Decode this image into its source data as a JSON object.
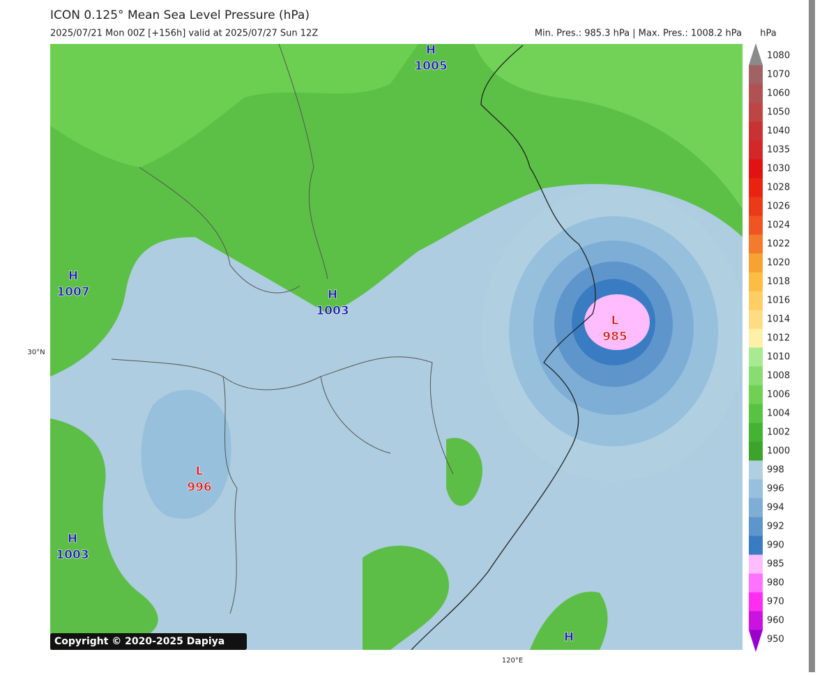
{
  "header": {
    "title": "ICON 0.125° Mean Sea Level Pressure (hPa)",
    "subtitle": "2025/07/21 Mon 00Z [+156h] valid at 2025/07/27 Sun 12Z",
    "min_max": "Min. Pres.: 985.3 hPa | Max. Pres.: 1008.2 hPa"
  },
  "colorbar": {
    "unit": "hPa",
    "entries": [
      {
        "value": 1080,
        "color": "#8a8a8a"
      },
      {
        "value": 1070,
        "color": "#a06262"
      },
      {
        "value": 1060,
        "color": "#b05252"
      },
      {
        "value": 1050,
        "color": "#bf4444"
      },
      {
        "value": 1040,
        "color": "#c83232"
      },
      {
        "value": 1035,
        "color": "#d22828"
      },
      {
        "value": 1030,
        "color": "#e01212"
      },
      {
        "value": 1028,
        "color": "#e82410"
      },
      {
        "value": 1026,
        "color": "#ea3a18"
      },
      {
        "value": 1024,
        "color": "#f05422"
      },
      {
        "value": 1022,
        "color": "#f47a2c"
      },
      {
        "value": 1020,
        "color": "#f8a234"
      },
      {
        "value": 1018,
        "color": "#fbbd44"
      },
      {
        "value": 1016,
        "color": "#fcce64"
      },
      {
        "value": 1014,
        "color": "#fddc84"
      },
      {
        "value": 1012,
        "color": "#fef0a6"
      },
      {
        "value": 1010,
        "color": "#a8ea92"
      },
      {
        "value": 1008,
        "color": "#88dc72"
      },
      {
        "value": 1006,
        "color": "#70d054"
      },
      {
        "value": 1004,
        "color": "#5ac242"
      },
      {
        "value": 1002,
        "color": "#44b232"
      },
      {
        "value": 1000,
        "color": "#3ea32c"
      },
      {
        "value": 998,
        "color": "#b0d0e2"
      },
      {
        "value": 996,
        "color": "#96c0dc"
      },
      {
        "value": 994,
        "color": "#7eaed6"
      },
      {
        "value": 992,
        "color": "#5e96cc"
      },
      {
        "value": 990,
        "color": "#3a7cc2"
      },
      {
        "value": 985,
        "color": "#ffbcff"
      },
      {
        "value": 980,
        "color": "#ff72ff"
      },
      {
        "value": 970,
        "color": "#ff2cf2"
      },
      {
        "value": 960,
        "color": "#cc12de"
      },
      {
        "value": 950,
        "color": "#9a00cc"
      }
    ]
  },
  "pressure_centers": [
    {
      "symbol": "H",
      "value": 1005
    },
    {
      "symbol": "H",
      "value": 1007
    },
    {
      "symbol": "H",
      "value": 1003
    },
    {
      "symbol": "L",
      "value": 985
    },
    {
      "symbol": "L",
      "value": 996
    },
    {
      "symbol": "H",
      "value": 1003
    },
    {
      "symbol": "H"
    }
  ],
  "axes": {
    "lat_label": "30°N",
    "lon_label": "120°E"
  },
  "copyright": "Copyright © 2020-2025 Dapiya"
}
